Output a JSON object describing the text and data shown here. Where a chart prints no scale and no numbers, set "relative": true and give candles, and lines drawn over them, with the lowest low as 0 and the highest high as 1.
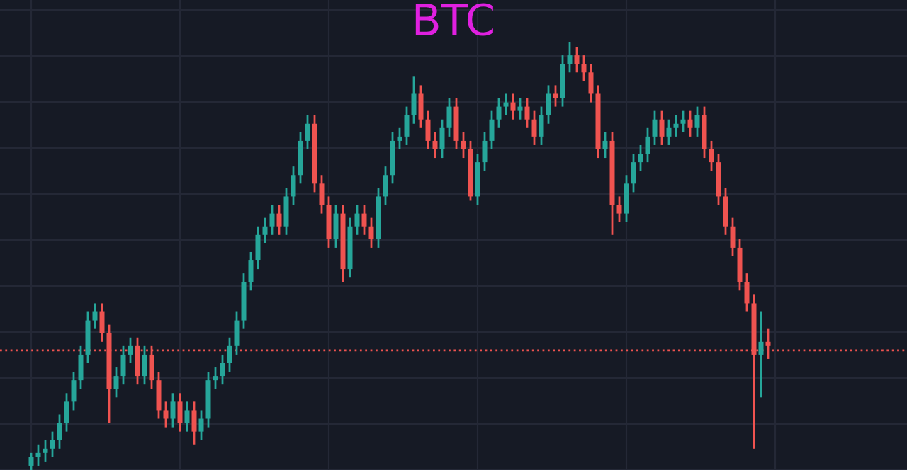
{
  "chart_data": {
    "type": "candlestick",
    "title": "BTC",
    "relative": true,
    "grid": true,
    "categories": [
      null,
      null,
      null,
      null,
      null,
      null,
      null,
      null,
      null,
      null,
      null,
      null,
      null,
      null,
      null,
      null,
      null,
      null,
      null,
      null,
      null,
      null,
      null,
      null,
      null,
      null,
      null,
      null,
      null,
      null,
      null,
      null,
      null,
      null,
      null,
      null,
      null,
      null,
      null,
      null,
      null,
      null,
      null,
      null,
      null,
      null,
      null,
      null,
      null,
      null,
      null,
      null,
      null,
      null,
      null,
      null,
      null,
      null,
      null,
      null,
      null,
      null,
      null,
      null,
      null,
      null,
      null,
      null,
      null,
      null,
      null,
      null,
      null,
      null,
      null,
      null,
      null,
      null,
      null,
      null,
      null,
      null,
      null,
      null,
      null,
      null,
      null,
      null,
      null,
      null,
      null,
      null,
      null,
      null,
      null,
      null,
      null,
      null,
      null,
      null,
      null,
      null,
      null,
      null,
      null
    ],
    "ohlc": [
      [
        0.01,
        0.04,
        0.0,
        0.03
      ],
      [
        0.03,
        0.06,
        0.01,
        0.04
      ],
      [
        0.04,
        0.07,
        0.02,
        0.05
      ],
      [
        0.05,
        0.09,
        0.03,
        0.07
      ],
      [
        0.07,
        0.13,
        0.05,
        0.11
      ],
      [
        0.11,
        0.18,
        0.09,
        0.16
      ],
      [
        0.16,
        0.23,
        0.14,
        0.21
      ],
      [
        0.21,
        0.29,
        0.19,
        0.27
      ],
      [
        0.27,
        0.37,
        0.25,
        0.35
      ],
      [
        0.35,
        0.39,
        0.33,
        0.37
      ],
      [
        0.37,
        0.39,
        0.3,
        0.32
      ],
      [
        0.32,
        0.34,
        0.11,
        0.19
      ],
      [
        0.19,
        0.24,
        0.17,
        0.22
      ],
      [
        0.22,
        0.29,
        0.2,
        0.27
      ],
      [
        0.27,
        0.31,
        0.25,
        0.29
      ],
      [
        0.29,
        0.31,
        0.2,
        0.22
      ],
      [
        0.22,
        0.29,
        0.2,
        0.27
      ],
      [
        0.27,
        0.29,
        0.19,
        0.21
      ],
      [
        0.21,
        0.23,
        0.12,
        0.14
      ],
      [
        0.14,
        0.16,
        0.1,
        0.12
      ],
      [
        0.12,
        0.18,
        0.1,
        0.16
      ],
      [
        0.16,
        0.18,
        0.09,
        0.11
      ],
      [
        0.11,
        0.16,
        0.09,
        0.14
      ],
      [
        0.14,
        0.16,
        0.06,
        0.09
      ],
      [
        0.09,
        0.14,
        0.07,
        0.12
      ],
      [
        0.12,
        0.23,
        0.1,
        0.21
      ],
      [
        0.21,
        0.24,
        0.19,
        0.22
      ],
      [
        0.22,
        0.27,
        0.2,
        0.25
      ],
      [
        0.25,
        0.31,
        0.23,
        0.29
      ],
      [
        0.29,
        0.37,
        0.27,
        0.35
      ],
      [
        0.35,
        0.46,
        0.33,
        0.44
      ],
      [
        0.44,
        0.51,
        0.42,
        0.49
      ],
      [
        0.49,
        0.57,
        0.47,
        0.55
      ],
      [
        0.55,
        0.59,
        0.53,
        0.57
      ],
      [
        0.57,
        0.62,
        0.55,
        0.6
      ],
      [
        0.6,
        0.62,
        0.55,
        0.57
      ],
      [
        0.57,
        0.66,
        0.55,
        0.64
      ],
      [
        0.64,
        0.71,
        0.62,
        0.69
      ],
      [
        0.69,
        0.79,
        0.67,
        0.77
      ],
      [
        0.77,
        0.83,
        0.75,
        0.81
      ],
      [
        0.81,
        0.83,
        0.65,
        0.67
      ],
      [
        0.67,
        0.69,
        0.6,
        0.62
      ],
      [
        0.62,
        0.64,
        0.52,
        0.54
      ],
      [
        0.54,
        0.62,
        0.52,
        0.6
      ],
      [
        0.6,
        0.62,
        0.44,
        0.47
      ],
      [
        0.47,
        0.59,
        0.45,
        0.57
      ],
      [
        0.57,
        0.62,
        0.55,
        0.6
      ],
      [
        0.6,
        0.62,
        0.55,
        0.57
      ],
      [
        0.57,
        0.59,
        0.52,
        0.54
      ],
      [
        0.54,
        0.66,
        0.52,
        0.64
      ],
      [
        0.64,
        0.71,
        0.62,
        0.69
      ],
      [
        0.69,
        0.79,
        0.67,
        0.77
      ],
      [
        0.77,
        0.8,
        0.75,
        0.78
      ],
      [
        0.78,
        0.85,
        0.76,
        0.83
      ],
      [
        0.83,
        0.92,
        0.81,
        0.88
      ],
      [
        0.88,
        0.9,
        0.8,
        0.82
      ],
      [
        0.82,
        0.84,
        0.75,
        0.77
      ],
      [
        0.77,
        0.79,
        0.73,
        0.75
      ],
      [
        0.75,
        0.82,
        0.73,
        0.8
      ],
      [
        0.8,
        0.87,
        0.78,
        0.85
      ],
      [
        0.85,
        0.87,
        0.75,
        0.77
      ],
      [
        0.77,
        0.79,
        0.73,
        0.75
      ],
      [
        0.75,
        0.77,
        0.63,
        0.64
      ],
      [
        0.64,
        0.74,
        0.62,
        0.72
      ],
      [
        0.72,
        0.79,
        0.7,
        0.77
      ],
      [
        0.77,
        0.84,
        0.75,
        0.82
      ],
      [
        0.82,
        0.87,
        0.8,
        0.85
      ],
      [
        0.85,
        0.88,
        0.83,
        0.86
      ],
      [
        0.86,
        0.88,
        0.82,
        0.84
      ],
      [
        0.84,
        0.87,
        0.82,
        0.85
      ],
      [
        0.85,
        0.87,
        0.8,
        0.82
      ],
      [
        0.82,
        0.84,
        0.76,
        0.78
      ],
      [
        0.78,
        0.85,
        0.76,
        0.83
      ],
      [
        0.83,
        0.9,
        0.81,
        0.88
      ],
      [
        0.88,
        0.9,
        0.85,
        0.87
      ],
      [
        0.87,
        0.97,
        0.85,
        0.95
      ],
      [
        0.95,
        1.0,
        0.93,
        0.97
      ],
      [
        0.97,
        0.99,
        0.93,
        0.95
      ],
      [
        0.95,
        0.97,
        0.91,
        0.93
      ],
      [
        0.93,
        0.95,
        0.86,
        0.88
      ],
      [
        0.88,
        0.9,
        0.73,
        0.75
      ],
      [
        0.75,
        0.79,
        0.73,
        0.77
      ],
      [
        0.77,
        0.79,
        0.55,
        0.62
      ],
      [
        0.62,
        0.64,
        0.58,
        0.6
      ],
      [
        0.6,
        0.69,
        0.58,
        0.67
      ],
      [
        0.67,
        0.74,
        0.65,
        0.72
      ],
      [
        0.72,
        0.76,
        0.7,
        0.74
      ],
      [
        0.74,
        0.8,
        0.72,
        0.78
      ],
      [
        0.78,
        0.84,
        0.76,
        0.82
      ],
      [
        0.82,
        0.84,
        0.76,
        0.78
      ],
      [
        0.78,
        0.82,
        0.76,
        0.8
      ],
      [
        0.8,
        0.83,
        0.78,
        0.81
      ],
      [
        0.81,
        0.84,
        0.79,
        0.82
      ],
      [
        0.82,
        0.84,
        0.78,
        0.8
      ],
      [
        0.8,
        0.85,
        0.78,
        0.83
      ],
      [
        0.83,
        0.85,
        0.73,
        0.75
      ],
      [
        0.75,
        0.77,
        0.7,
        0.72
      ],
      [
        0.72,
        0.74,
        0.62,
        0.64
      ],
      [
        0.64,
        0.66,
        0.55,
        0.57
      ],
      [
        0.57,
        0.59,
        0.5,
        0.52
      ],
      [
        0.52,
        0.54,
        0.42,
        0.44
      ],
      [
        0.44,
        0.46,
        0.37,
        0.39
      ],
      [
        0.39,
        0.41,
        0.05,
        0.27
      ],
      [
        0.27,
        0.37,
        0.17,
        0.3
      ],
      [
        0.3,
        0.33,
        0.26,
        0.29
      ]
    ],
    "ref_lines": [
      {
        "axis": "y",
        "value": 0.28,
        "color": "#ef5350",
        "line_style": "dotted"
      }
    ]
  }
}
